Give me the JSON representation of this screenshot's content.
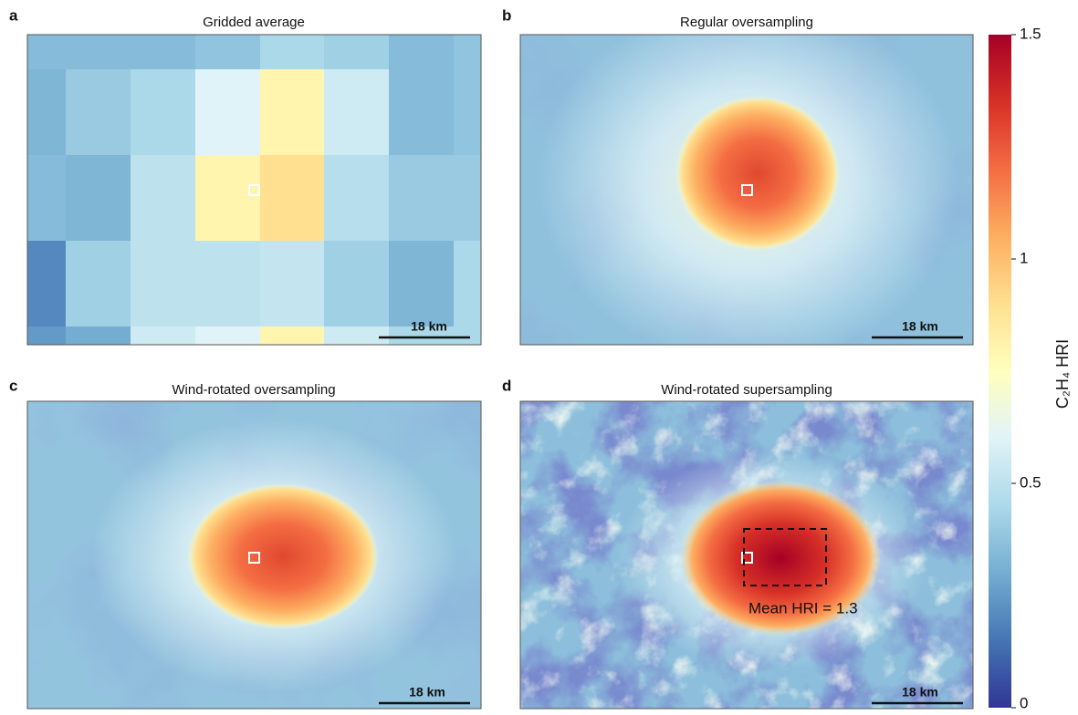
{
  "chart_data": {
    "type": "heatmap",
    "colormap": [
      "#313695",
      "#4575b4",
      "#74add1",
      "#abd9e9",
      "#e0f3f8",
      "#ffffbf",
      "#fee090",
      "#fdae61",
      "#f46d43",
      "#d73027",
      "#a50026"
    ],
    "clim": [
      0,
      1.5
    ],
    "colorbar": {
      "label": "C₂H₄ HRI",
      "ticks": [
        0,
        0.5,
        1,
        1.5
      ]
    },
    "panels": [
      {
        "letter": "a",
        "title": "Gridded average",
        "scale_bar": "18 km",
        "values": [
          [
            0.35,
            0.35,
            0.35,
            0.38,
            0.45,
            0.42,
            0.35,
            0.38
          ],
          [
            0.33,
            0.4,
            0.45,
            0.6,
            0.8,
            0.55,
            0.35,
            0.38
          ],
          [
            0.35,
            0.33,
            0.5,
            0.8,
            0.9,
            0.48,
            0.4,
            0.4
          ],
          [
            0.2,
            0.42,
            0.5,
            0.5,
            0.52,
            0.42,
            0.33,
            0.45
          ],
          [
            0.25,
            0.3,
            0.55,
            0.6,
            0.8,
            0.55,
            0.45,
            0.45
          ]
        ]
      },
      {
        "letter": "b",
        "title": "Regular oversampling",
        "scale_bar": "18 km"
      },
      {
        "letter": "c",
        "title": "Wind-rotated oversampling",
        "scale_bar": "18 km"
      },
      {
        "letter": "d",
        "title": "Wind-rotated supersampling",
        "scale_bar": "18 km",
        "annotation": "Mean HRI = 1.3"
      }
    ]
  }
}
